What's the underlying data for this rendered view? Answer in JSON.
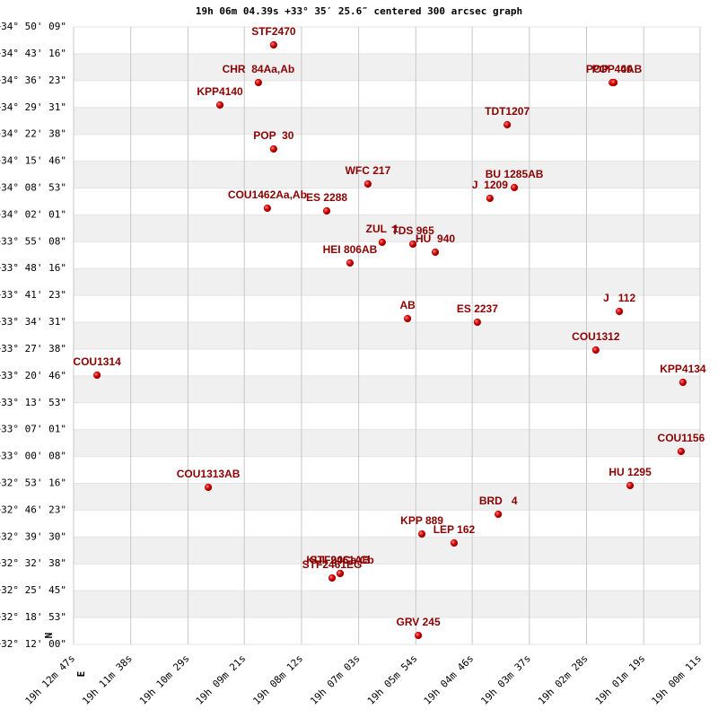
{
  "chart_data": {
    "type": "scatter",
    "title": "19h 06m 04.39s +33° 35′ 25.6″ centered 300 arcsec graph",
    "compass": [
      "N",
      "E"
    ],
    "point_labels": [
      "STF2470",
      "CHR  84Aa,Ab",
      "POP  40",
      "POP  40AB",
      "KPP4140",
      "TDT1207",
      "POP  30",
      "WFC 217",
      "BU 1285AB",
      "J  1209",
      "COU1462Aa,Ab",
      "ES 2288",
      "ZUL  1",
      "TDS 965",
      "HU  940",
      "HEI 806AB",
      "AB",
      "ES 2237",
      "J   112",
      "COU1312",
      "COU1314",
      "KPP4134",
      "COU1156",
      "COU1313AB",
      "HU 1295",
      "BRD   4",
      "KPP 889",
      "LEP 162",
      "KUI  90Ca,Cb",
      "STF2461AB",
      "STF2461EG",
      "GRV 245"
    ],
    "x": [
      19.146,
      19.1511,
      19.0325,
      19.0319,
      19.164,
      19.0677,
      19.146,
      19.1144,
      19.0653,
      19.0735,
      19.1481,
      19.1282,
      19.1096,
      19.0993,
      19.0918,
      19.1204,
      19.1011,
      19.0777,
      19.0301,
      19.038,
      19.2052,
      19.0088,
      19.0094,
      19.1679,
      19.0265,
      19.0707,
      19.0963,
      19.0855,
      19.1237,
      19.1237,
      19.1264,
      19.0975
    ],
    "values": [
      34.7592,
      34.5983,
      34.5983,
      34.5983,
      34.5026,
      34.4183,
      34.3148,
      34.1654,
      34.1501,
      34.1041,
      34.062,
      34.0505,
      33.9164,
      33.9087,
      33.8742,
      33.8283,
      33.5907,
      33.5754,
      33.6214,
      33.4566,
      33.3494,
      33.3187,
      33.0237,
      32.8705,
      32.8781,
      32.7555,
      32.6712,
      32.6329,
      32.5027,
      32.5027,
      32.4835,
      32.2383
    ],
    "color": "#cc0000",
    "label_color": "#8b0000",
    "xlim": [
      19.213056,
      19.003056
    ],
    "ylim": [
      32.2,
      34.835833
    ],
    "xticks": [
      {
        "value": 19.213056,
        "label": "19h 12m 47s"
      },
      {
        "value": 19.193889,
        "label": "19h 11m 38s"
      },
      {
        "value": 19.174722,
        "label": "19h 10m 29s"
      },
      {
        "value": 19.155833,
        "label": "19h 09m 21s"
      },
      {
        "value": 19.136667,
        "label": "19h 08m 12s"
      },
      {
        "value": 19.1175,
        "label": "19h 07m 03s"
      },
      {
        "value": 19.098333,
        "label": "19h 05m 54s"
      },
      {
        "value": 19.079444,
        "label": "19h 04m 46s"
      },
      {
        "value": 19.060278,
        "label": "19h 03m 37s"
      },
      {
        "value": 19.041111,
        "label": "19h 02m 28s"
      },
      {
        "value": 19.021944,
        "label": "19h 01m 19s"
      },
      {
        "value": 19.003056,
        "label": "19h 00m 11s"
      }
    ],
    "yticks": [
      {
        "value": 32.2,
        "label": "+32° 12' 00\""
      },
      {
        "value": 32.314722,
        "label": "+32° 18' 53\""
      },
      {
        "value": 32.429167,
        "label": "+32° 25' 45\""
      },
      {
        "value": 32.543889,
        "label": "+32° 32' 38\""
      },
      {
        "value": 32.658333,
        "label": "+32° 39' 30\""
      },
      {
        "value": 32.773056,
        "label": "+32° 46' 23\""
      },
      {
        "value": 32.887778,
        "label": "+32° 53' 16\""
      },
      {
        "value": 33.002222,
        "label": "+33° 00' 08\""
      },
      {
        "value": 33.116944,
        "label": "+33° 07' 01\""
      },
      {
        "value": 33.231389,
        "label": "+33° 13' 53\""
      },
      {
        "value": 33.346111,
        "label": "+33° 20' 46\""
      },
      {
        "value": 33.460556,
        "label": "+33° 27' 38\""
      },
      {
        "value": 33.575278,
        "label": "+33° 34' 31\""
      },
      {
        "value": 33.689722,
        "label": "+33° 41' 23\""
      },
      {
        "value": 33.804444,
        "label": "+33° 48' 16\""
      },
      {
        "value": 33.918889,
        "label": "+33° 55' 08\""
      },
      {
        "value": 34.033611,
        "label": "+34° 02' 01\""
      },
      {
        "value": 34.148056,
        "label": "+34° 08' 53\""
      },
      {
        "value": 34.262778,
        "label": "+34° 15' 46\""
      },
      {
        "value": 34.377222,
        "label": "+34° 22' 38\""
      },
      {
        "value": 34.491944,
        "label": "+34° 29' 31\""
      },
      {
        "value": 34.606389,
        "label": "+34° 36' 23\""
      },
      {
        "value": 34.721111,
        "label": "+34° 43' 16\""
      },
      {
        "value": 34.835833,
        "label": "+34° 50' 09\""
      }
    ],
    "grid": true
  }
}
